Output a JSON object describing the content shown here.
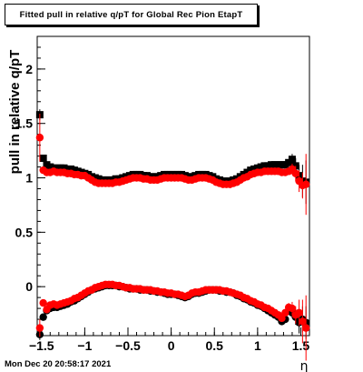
{
  "title": "Fitted pull in relative q/pT for Global Rec Pion EtapT",
  "timestamp": "Mon Dec 20 20:58:17 2021",
  "chart_data": {
    "type": "scatter",
    "title": "Fitted pull in relative q/pT for Global Rec Pion EtapT",
    "xlabel": "η",
    "ylabel": "pull in relative q/pT",
    "xlim": [
      -1.55,
      1.6
    ],
    "ylim": [
      -0.45,
      2.3
    ],
    "xticks": [
      -1.5,
      -1,
      -0.5,
      0,
      0.5,
      1,
      1.5
    ],
    "xtick_labels": [
      "−1.5",
      "−1",
      "−0.5",
      "0",
      "0.5",
      "1",
      "1.5"
    ],
    "yticks": [
      0,
      0.5,
      1,
      1.5,
      2
    ],
    "ytick_labels": [
      "0",
      "0.5",
      "1",
      "1.5",
      "2"
    ],
    "series": [
      {
        "color": "#000000",
        "marker": "square",
        "role": "sigma",
        "x": [
          -1.52,
          -1.48,
          -1.44,
          -1.4,
          -1.36,
          -1.32,
          -1.28,
          -1.24,
          -1.2,
          -1.16,
          -1.12,
          -1.08,
          -1.04,
          -1.0,
          -0.96,
          -0.92,
          -0.88,
          -0.84,
          -0.8,
          -0.76,
          -0.72,
          -0.68,
          -0.64,
          -0.6,
          -0.56,
          -0.52,
          -0.48,
          -0.44,
          -0.4,
          -0.36,
          -0.32,
          -0.28,
          -0.24,
          -0.2,
          -0.16,
          -0.12,
          -0.08,
          -0.04,
          0.0,
          0.04,
          0.08,
          0.12,
          0.16,
          0.2,
          0.24,
          0.28,
          0.32,
          0.36,
          0.4,
          0.44,
          0.48,
          0.52,
          0.56,
          0.6,
          0.64,
          0.68,
          0.72,
          0.76,
          0.8,
          0.84,
          0.88,
          0.92,
          0.96,
          1.0,
          1.04,
          1.08,
          1.12,
          1.16,
          1.2,
          1.24,
          1.28,
          1.32,
          1.36,
          1.4,
          1.44,
          1.48,
          1.52,
          1.56
        ],
        "y": [
          1.58,
          1.18,
          1.12,
          1.1,
          1.09,
          1.09,
          1.09,
          1.09,
          1.08,
          1.08,
          1.07,
          1.06,
          1.05,
          1.04,
          1.03,
          1.01,
          1.0,
          0.99,
          0.98,
          0.98,
          0.98,
          0.98,
          0.99,
          0.99,
          1.0,
          1.01,
          1.02,
          1.03,
          1.03,
          1.03,
          1.02,
          1.02,
          1.01,
          1.01,
          1.01,
          1.02,
          1.03,
          1.03,
          1.03,
          1.03,
          1.03,
          1.03,
          1.02,
          1.01,
          1.01,
          1.02,
          1.03,
          1.03,
          1.03,
          1.02,
          1.01,
          0.99,
          0.98,
          0.97,
          0.97,
          0.97,
          0.98,
          0.99,
          1.01,
          1.03,
          1.05,
          1.07,
          1.08,
          1.09,
          1.1,
          1.11,
          1.11,
          1.12,
          1.12,
          1.12,
          1.12,
          1.12,
          1.14,
          1.17,
          1.11,
          1.02,
          0.97,
          0.96
        ],
        "err": [
          0.05,
          0.02,
          0.01,
          0.01,
          0.01,
          0.01,
          0.01,
          0.01,
          0.01,
          0.01,
          0.01,
          0.01,
          0.01,
          0.01,
          0.01,
          0.01,
          0.01,
          0.01,
          0.01,
          0.01,
          0.01,
          0.01,
          0.01,
          0.01,
          0.01,
          0.01,
          0.01,
          0.01,
          0.01,
          0.01,
          0.01,
          0.01,
          0.01,
          0.01,
          0.01,
          0.01,
          0.01,
          0.01,
          0.01,
          0.01,
          0.01,
          0.01,
          0.01,
          0.01,
          0.01,
          0.01,
          0.01,
          0.01,
          0.01,
          0.01,
          0.01,
          0.01,
          0.01,
          0.01,
          0.01,
          0.01,
          0.01,
          0.01,
          0.01,
          0.01,
          0.01,
          0.01,
          0.01,
          0.01,
          0.01,
          0.01,
          0.01,
          0.01,
          0.01,
          0.01,
          0.01,
          0.02,
          0.03,
          0.05,
          0.07,
          0.1,
          0.15,
          0.2
        ]
      },
      {
        "color": "#ff0000",
        "marker": "circle",
        "role": "sigma",
        "x": [
          -1.52,
          -1.48,
          -1.44,
          -1.4,
          -1.36,
          -1.32,
          -1.28,
          -1.24,
          -1.2,
          -1.16,
          -1.12,
          -1.08,
          -1.04,
          -1.0,
          -0.96,
          -0.92,
          -0.88,
          -0.84,
          -0.8,
          -0.76,
          -0.72,
          -0.68,
          -0.64,
          -0.6,
          -0.56,
          -0.52,
          -0.48,
          -0.44,
          -0.4,
          -0.36,
          -0.32,
          -0.28,
          -0.24,
          -0.2,
          -0.16,
          -0.12,
          -0.08,
          -0.04,
          0.0,
          0.04,
          0.08,
          0.12,
          0.16,
          0.2,
          0.24,
          0.28,
          0.32,
          0.36,
          0.4,
          0.44,
          0.48,
          0.52,
          0.56,
          0.6,
          0.64,
          0.68,
          0.72,
          0.76,
          0.8,
          0.84,
          0.88,
          0.92,
          0.96,
          1.0,
          1.04,
          1.08,
          1.12,
          1.16,
          1.2,
          1.24,
          1.28,
          1.32,
          1.36,
          1.4,
          1.44,
          1.48,
          1.52,
          1.56
        ],
        "y": [
          1.37,
          1.07,
          1.05,
          1.05,
          1.06,
          1.05,
          1.05,
          1.05,
          1.04,
          1.04,
          1.03,
          1.03,
          1.02,
          1.02,
          1.0,
          0.98,
          0.96,
          0.95,
          0.95,
          0.95,
          0.95,
          0.95,
          0.96,
          0.96,
          0.97,
          0.98,
          0.99,
          1.0,
          1.0,
          1.0,
          0.99,
          0.99,
          0.98,
          0.98,
          0.98,
          0.99,
          1.0,
          1.0,
          1.0,
          1.0,
          1.0,
          1.0,
          0.99,
          0.98,
          0.98,
          0.99,
          1.0,
          1.0,
          1.0,
          0.99,
          0.98,
          0.96,
          0.95,
          0.94,
          0.94,
          0.94,
          0.95,
          0.96,
          0.98,
          1.0,
          1.01,
          1.03,
          1.04,
          1.05,
          1.05,
          1.06,
          1.06,
          1.06,
          1.06,
          1.06,
          1.05,
          1.05,
          1.06,
          1.08,
          1.04,
          0.97,
          0.93,
          0.94
        ],
        "err": [
          0.22,
          0.02,
          0.01,
          0.01,
          0.01,
          0.01,
          0.01,
          0.01,
          0.01,
          0.01,
          0.01,
          0.01,
          0.01,
          0.01,
          0.01,
          0.01,
          0.01,
          0.01,
          0.01,
          0.01,
          0.01,
          0.01,
          0.01,
          0.01,
          0.01,
          0.01,
          0.01,
          0.01,
          0.01,
          0.01,
          0.01,
          0.01,
          0.01,
          0.01,
          0.01,
          0.01,
          0.01,
          0.01,
          0.01,
          0.01,
          0.01,
          0.01,
          0.01,
          0.01,
          0.01,
          0.01,
          0.01,
          0.01,
          0.01,
          0.01,
          0.01,
          0.01,
          0.01,
          0.01,
          0.01,
          0.01,
          0.01,
          0.01,
          0.01,
          0.01,
          0.01,
          0.01,
          0.01,
          0.01,
          0.01,
          0.01,
          0.01,
          0.01,
          0.01,
          0.01,
          0.01,
          0.02,
          0.03,
          0.05,
          0.07,
          0.1,
          0.12,
          0.28
        ]
      },
      {
        "color": "#000000",
        "marker": "circle",
        "role": "mean",
        "x": [
          -1.52,
          -1.48,
          -1.44,
          -1.4,
          -1.36,
          -1.32,
          -1.28,
          -1.24,
          -1.2,
          -1.16,
          -1.12,
          -1.08,
          -1.04,
          -1.0,
          -0.96,
          -0.92,
          -0.88,
          -0.84,
          -0.8,
          -0.76,
          -0.72,
          -0.68,
          -0.64,
          -0.6,
          -0.56,
          -0.52,
          -0.48,
          -0.44,
          -0.4,
          -0.36,
          -0.32,
          -0.28,
          -0.24,
          -0.2,
          -0.16,
          -0.12,
          -0.08,
          -0.04,
          0.0,
          0.04,
          0.08,
          0.12,
          0.16,
          0.2,
          0.24,
          0.28,
          0.32,
          0.36,
          0.4,
          0.44,
          0.48,
          0.52,
          0.56,
          0.6,
          0.64,
          0.68,
          0.72,
          0.76,
          0.8,
          0.84,
          0.88,
          0.92,
          0.96,
          1.0,
          1.04,
          1.08,
          1.12,
          1.16,
          1.2,
          1.24,
          1.28,
          1.32,
          1.36,
          1.4,
          1.44,
          1.48,
          1.52,
          1.56
        ],
        "y": [
          -0.44,
          -0.28,
          -0.22,
          -0.2,
          -0.19,
          -0.19,
          -0.18,
          -0.17,
          -0.16,
          -0.14,
          -0.13,
          -0.11,
          -0.09,
          -0.07,
          -0.05,
          -0.03,
          -0.02,
          -0.01,
          0.0,
          0.01,
          0.01,
          0.01,
          0.01,
          0.0,
          0.0,
          -0.01,
          -0.02,
          -0.02,
          -0.02,
          -0.03,
          -0.03,
          -0.03,
          -0.04,
          -0.04,
          -0.05,
          -0.05,
          -0.06,
          -0.07,
          -0.07,
          -0.07,
          -0.08,
          -0.09,
          -0.1,
          -0.09,
          -0.07,
          -0.06,
          -0.06,
          -0.05,
          -0.04,
          -0.03,
          -0.03,
          -0.03,
          -0.04,
          -0.04,
          -0.05,
          -0.05,
          -0.06,
          -0.08,
          -0.09,
          -0.11,
          -0.12,
          -0.14,
          -0.15,
          -0.17,
          -0.18,
          -0.2,
          -0.22,
          -0.24,
          -0.26,
          -0.28,
          -0.32,
          -0.3,
          -0.22,
          -0.24,
          -0.28,
          -0.33,
          -0.3,
          -0.33
        ],
        "err": [
          0.05,
          0.03,
          0.01,
          0.01,
          0.01,
          0.01,
          0.01,
          0.01,
          0.01,
          0.01,
          0.01,
          0.01,
          0.01,
          0.01,
          0.01,
          0.01,
          0.01,
          0.01,
          0.01,
          0.01,
          0.01,
          0.01,
          0.01,
          0.01,
          0.01,
          0.01,
          0.01,
          0.01,
          0.01,
          0.01,
          0.01,
          0.01,
          0.01,
          0.01,
          0.01,
          0.01,
          0.01,
          0.01,
          0.01,
          0.01,
          0.01,
          0.01,
          0.01,
          0.01,
          0.01,
          0.01,
          0.01,
          0.01,
          0.01,
          0.01,
          0.01,
          0.01,
          0.01,
          0.01,
          0.01,
          0.01,
          0.01,
          0.01,
          0.01,
          0.01,
          0.01,
          0.01,
          0.01,
          0.01,
          0.01,
          0.01,
          0.01,
          0.01,
          0.01,
          0.01,
          0.02,
          0.03,
          0.04,
          0.05,
          0.07,
          0.1,
          0.12,
          0.15
        ]
      },
      {
        "color": "#ff0000",
        "marker": "circle",
        "role": "mean",
        "x": [
          -1.52,
          -1.48,
          -1.44,
          -1.4,
          -1.36,
          -1.32,
          -1.28,
          -1.24,
          -1.2,
          -1.16,
          -1.12,
          -1.08,
          -1.04,
          -1.0,
          -0.96,
          -0.92,
          -0.88,
          -0.84,
          -0.8,
          -0.76,
          -0.72,
          -0.68,
          -0.64,
          -0.6,
          -0.56,
          -0.52,
          -0.48,
          -0.44,
          -0.4,
          -0.36,
          -0.32,
          -0.28,
          -0.24,
          -0.2,
          -0.16,
          -0.12,
          -0.08,
          -0.04,
          0.0,
          0.04,
          0.08,
          0.12,
          0.16,
          0.2,
          0.24,
          0.28,
          0.32,
          0.36,
          0.4,
          0.44,
          0.48,
          0.52,
          0.56,
          0.6,
          0.64,
          0.68,
          0.72,
          0.76,
          0.8,
          0.84,
          0.88,
          0.92,
          0.96,
          1.0,
          1.04,
          1.08,
          1.12,
          1.16,
          1.2,
          1.24,
          1.28,
          1.32,
          1.36,
          1.4,
          1.44,
          1.48,
          1.52,
          1.56
        ],
        "y": [
          -0.38,
          -0.15,
          -0.21,
          -0.17,
          -0.16,
          -0.17,
          -0.16,
          -0.15,
          -0.14,
          -0.13,
          -0.11,
          -0.1,
          -0.08,
          -0.06,
          -0.04,
          -0.03,
          -0.01,
          0.0,
          0.01,
          0.02,
          0.02,
          0.02,
          0.01,
          0.01,
          0.0,
          -0.01,
          -0.01,
          -0.02,
          -0.02,
          -0.02,
          -0.03,
          -0.03,
          -0.03,
          -0.04,
          -0.04,
          -0.05,
          -0.05,
          -0.06,
          -0.06,
          -0.07,
          -0.07,
          -0.08,
          -0.09,
          -0.08,
          -0.06,
          -0.05,
          -0.05,
          -0.04,
          -0.03,
          -0.03,
          -0.03,
          -0.03,
          -0.03,
          -0.04,
          -0.04,
          -0.05,
          -0.06,
          -0.07,
          -0.08,
          -0.1,
          -0.11,
          -0.13,
          -0.14,
          -0.16,
          -0.17,
          -0.19,
          -0.2,
          -0.22,
          -0.24,
          -0.26,
          -0.29,
          -0.24,
          -0.19,
          -0.2,
          -0.26,
          -0.24,
          -0.32,
          -0.38
        ],
        "err": [
          0.08,
          0.03,
          0.01,
          0.01,
          0.01,
          0.01,
          0.01,
          0.01,
          0.01,
          0.01,
          0.01,
          0.01,
          0.01,
          0.01,
          0.01,
          0.01,
          0.01,
          0.01,
          0.01,
          0.01,
          0.01,
          0.01,
          0.01,
          0.01,
          0.01,
          0.01,
          0.01,
          0.01,
          0.01,
          0.01,
          0.01,
          0.01,
          0.01,
          0.01,
          0.01,
          0.01,
          0.01,
          0.01,
          0.01,
          0.01,
          0.01,
          0.01,
          0.01,
          0.01,
          0.01,
          0.01,
          0.01,
          0.01,
          0.01,
          0.01,
          0.01,
          0.01,
          0.01,
          0.01,
          0.01,
          0.01,
          0.01,
          0.01,
          0.01,
          0.01,
          0.01,
          0.01,
          0.01,
          0.01,
          0.01,
          0.01,
          0.01,
          0.01,
          0.01,
          0.01,
          0.02,
          0.03,
          0.04,
          0.06,
          0.08,
          0.12,
          0.2,
          0.3
        ]
      }
    ]
  }
}
